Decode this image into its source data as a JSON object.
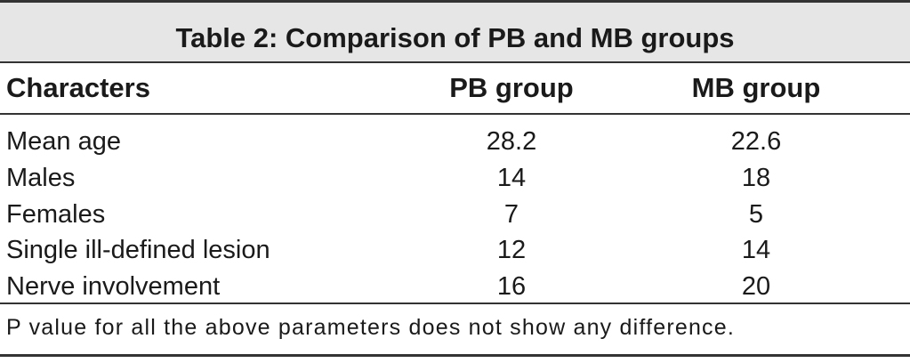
{
  "table": {
    "title": "Table 2: Comparison of PB and MB groups",
    "headers": [
      "Characters",
      "PB group",
      "MB group"
    ],
    "rows": [
      [
        "Mean age",
        "28.2",
        "22.6"
      ],
      [
        "Males",
        "14",
        "18"
      ],
      [
        "Females",
        "7",
        "5"
      ],
      [
        "Single ill-defined lesion",
        "12",
        "14"
      ],
      [
        "Nerve involvement",
        "16",
        "20"
      ]
    ],
    "footnote": "P value for all the above parameters does not show any difference."
  },
  "colors": {
    "title_band": "#e6e6e6",
    "rules": "#333333",
    "text": "#1a1a1a"
  }
}
